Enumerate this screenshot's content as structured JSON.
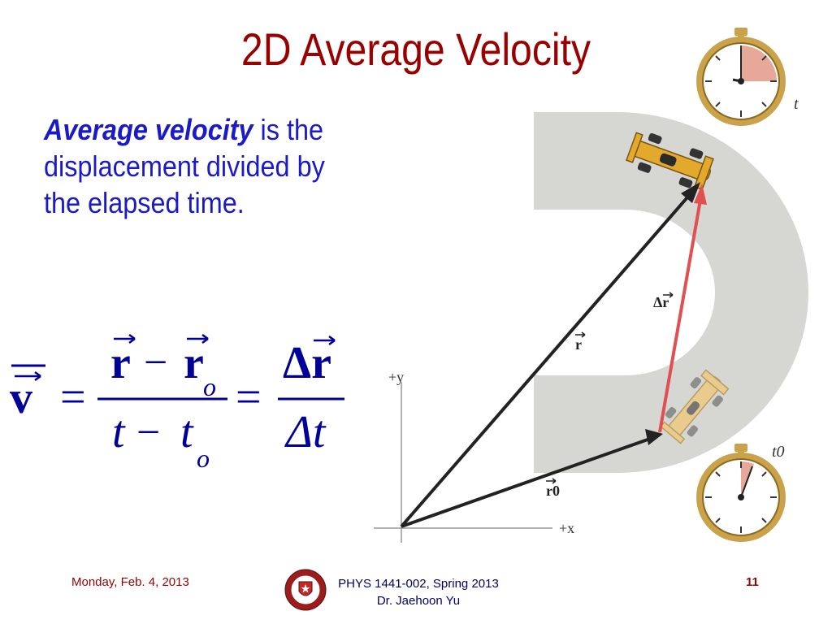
{
  "slide": {
    "title": "2D Average Velocity",
    "definition": {
      "term": "Average velocity",
      "rest": " is the displacement divided by the elapsed time."
    }
  },
  "equation": {
    "lhs": "v",
    "numerator_r": "r",
    "minus": "−",
    "numerator_r0": "r",
    "sub_o": "o",
    "equals": "=",
    "denominator_t": "t",
    "denominator_t0": "t",
    "delta_r": "Δr",
    "delta_t": "Δt"
  },
  "figure": {
    "axis_y_label": "+y",
    "axis_x_label": "+x",
    "vector_r_label": "r",
    "vector_r0_label": "r0",
    "vector_dr_label": "Δr",
    "stopwatch_top_label": "t",
    "stopwatch_bottom_label": "t0"
  },
  "footer": {
    "date": "Monday, Feb. 4, 2013",
    "course_line1": "PHYS 1441-002, Spring 2013",
    "course_line2": "Dr. Jaehoon Yu",
    "page_number": "11"
  },
  "colors": {
    "title": "#990000",
    "body_text": "#1a1ac8",
    "equation": "#000099",
    "footer_course": "#000066",
    "track": "#d6d6d2",
    "vector": "#222222",
    "displacement": "#e05050",
    "stopwatch_gold": "#c9a24a"
  }
}
